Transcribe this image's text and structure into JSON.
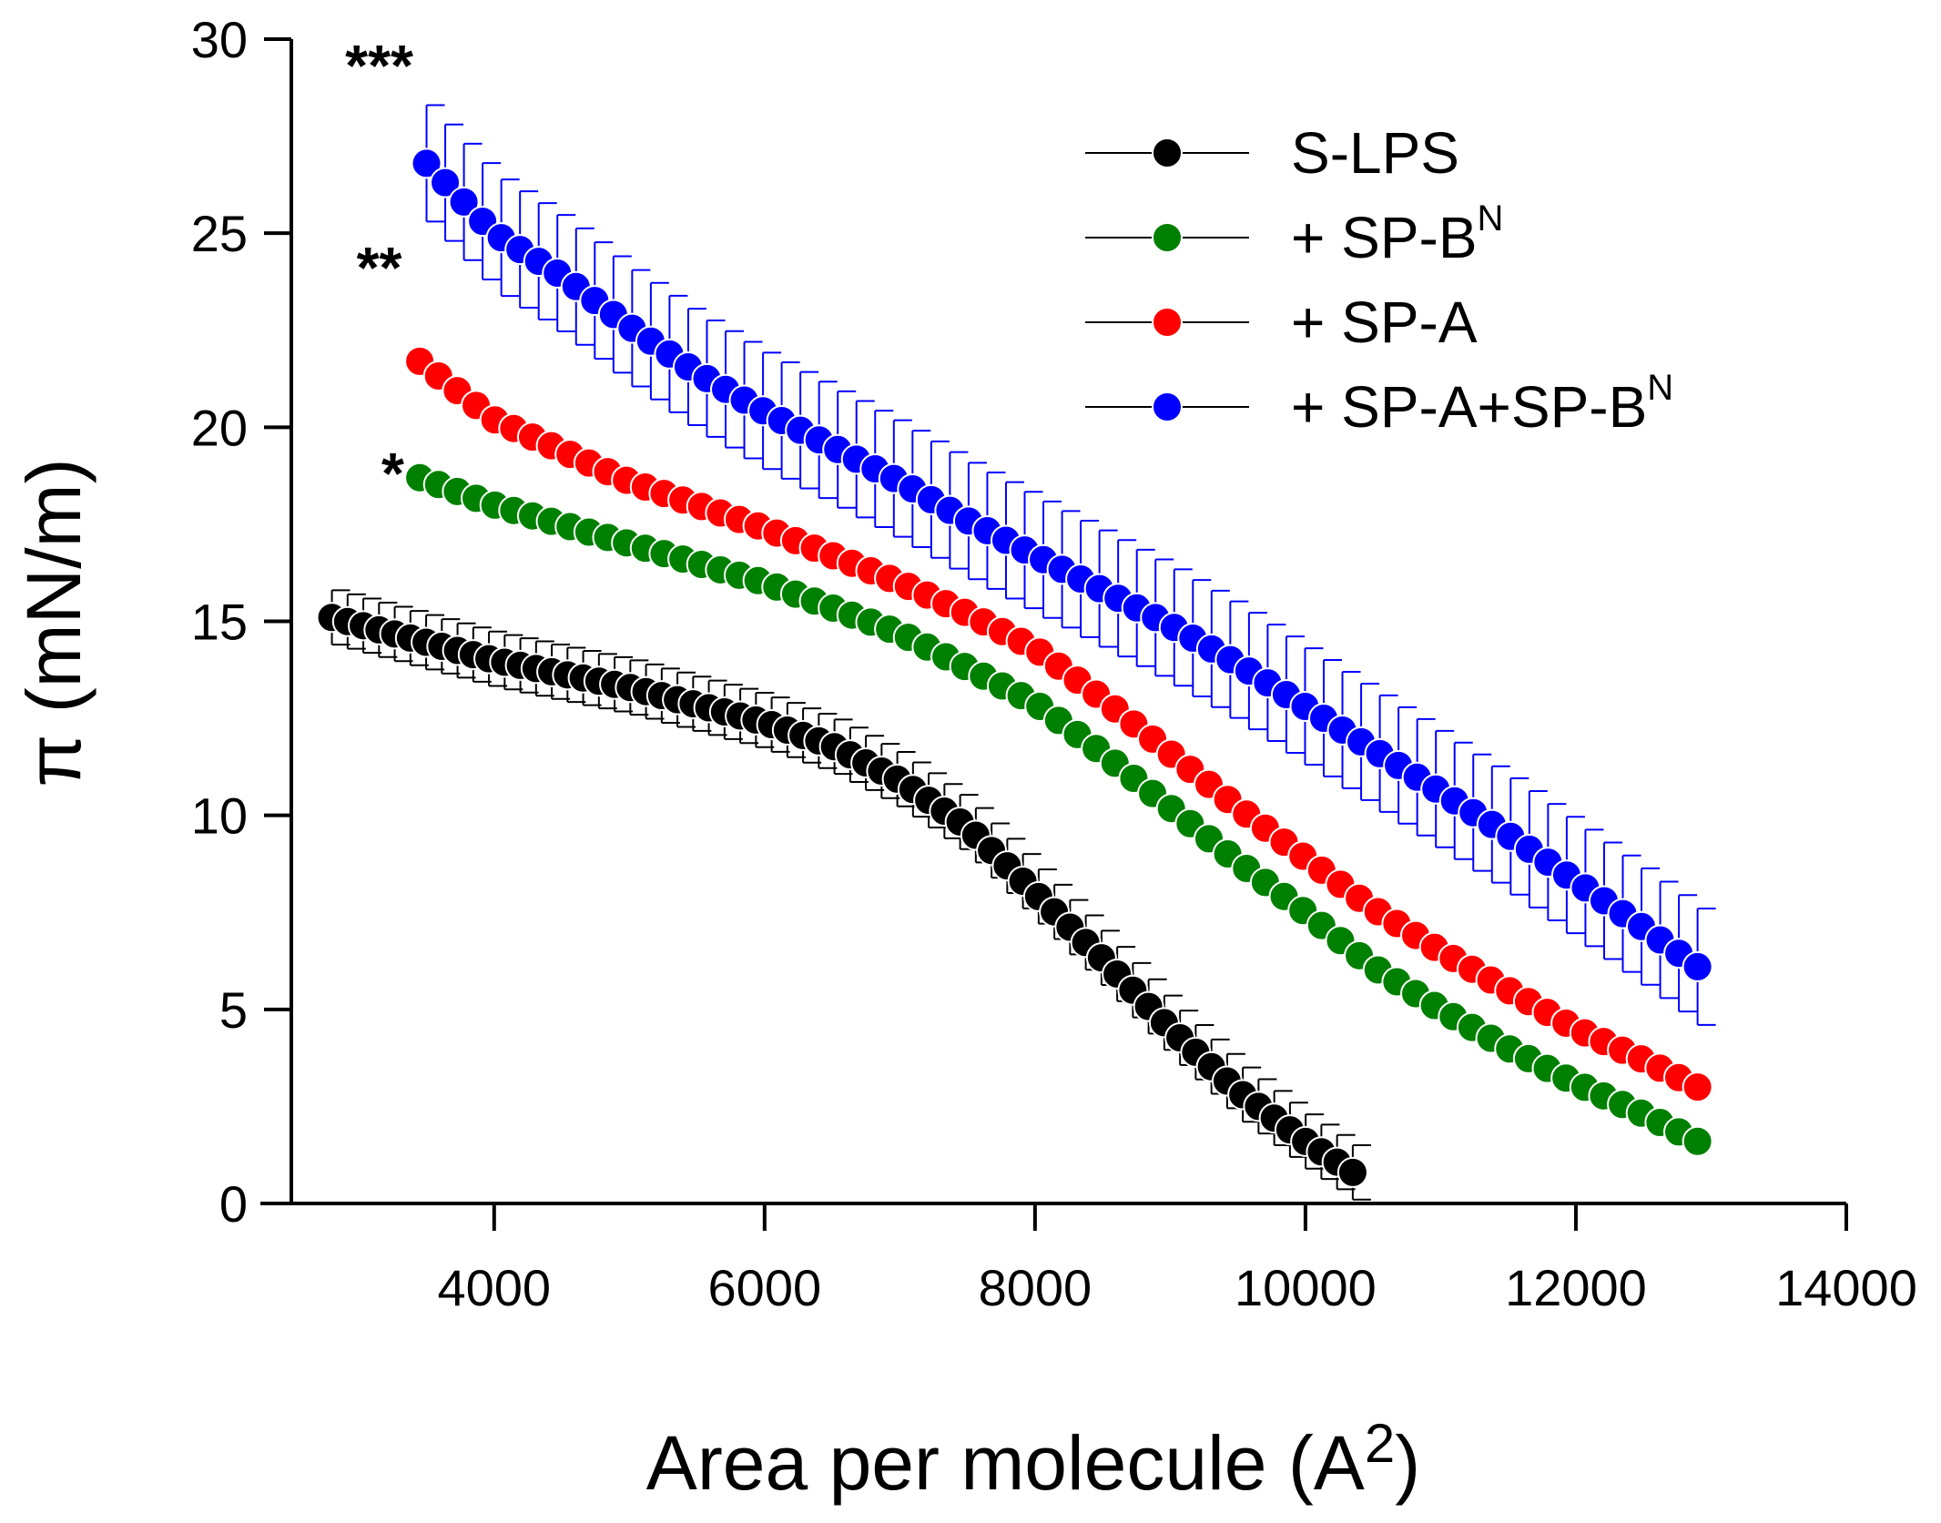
{
  "chart_data": {
    "type": "scatter",
    "title": "",
    "xlabel": "Area per molecule (A",
    "xlabel_sup": "2",
    "xlabel_close": ")",
    "ylabel": "π (mN/m)",
    "xlim": [
      2500,
      14000
    ],
    "ylim": [
      0,
      30
    ],
    "xticks": [
      4000,
      6000,
      8000,
      10000,
      12000,
      14000
    ],
    "yticks": [
      0,
      5,
      10,
      15,
      20,
      25,
      30
    ],
    "x_tick_labels": [
      "4000",
      "6000",
      "8000",
      "10000",
      "12000",
      "14000"
    ],
    "y_tick_labels": [
      "0",
      "5",
      "10",
      "15",
      "20",
      "25",
      "30"
    ],
    "legend_position": "top-right",
    "series": [
      {
        "name": "S-LPS",
        "name_sup": "",
        "color": "#000000",
        "x_start": 2800,
        "x_end": 10350,
        "n_points": 66,
        "error": 0.7,
        "curve": [
          [
            2800,
            15.1
          ],
          [
            4000,
            14.0
          ],
          [
            5000,
            13.3
          ],
          [
            6000,
            12.4
          ],
          [
            6500,
            11.8
          ],
          [
            7000,
            10.9
          ],
          [
            7500,
            9.7
          ],
          [
            8000,
            8.0
          ],
          [
            8500,
            6.3
          ],
          [
            9000,
            4.5
          ],
          [
            9500,
            2.9
          ],
          [
            10000,
            1.6
          ],
          [
            10350,
            0.8
          ]
        ]
      },
      {
        "name": "+ SP-B",
        "name_sup": "N",
        "color": "#008000",
        "x_start": 3450,
        "x_end": 12900,
        "n_points": 69,
        "error": 0,
        "curve": [
          [
            3450,
            18.7
          ],
          [
            4000,
            18.0
          ],
          [
            5000,
            17.0
          ],
          [
            6000,
            16.0
          ],
          [
            7000,
            14.7
          ],
          [
            7500,
            13.8
          ],
          [
            8000,
            12.9
          ],
          [
            8500,
            11.6
          ],
          [
            9000,
            10.2
          ],
          [
            9500,
            8.8
          ],
          [
            10000,
            7.5
          ],
          [
            10500,
            6.1
          ],
          [
            11000,
            5.0
          ],
          [
            11500,
            4.0
          ],
          [
            12000,
            3.1
          ],
          [
            12500,
            2.3
          ],
          [
            12900,
            1.6
          ]
        ]
      },
      {
        "name": "+ SP-A",
        "name_sup": "",
        "color": "#ff0000",
        "x_start": 3450,
        "x_end": 12900,
        "n_points": 69,
        "error": 0,
        "curve": [
          [
            3450,
            21.7
          ],
          [
            4000,
            20.2
          ],
          [
            5000,
            18.6
          ],
          [
            6000,
            17.4
          ],
          [
            7000,
            16.0
          ],
          [
            7500,
            15.2
          ],
          [
            8000,
            14.3
          ],
          [
            8500,
            13.0
          ],
          [
            9000,
            11.6
          ],
          [
            9500,
            10.2
          ],
          [
            10000,
            8.9
          ],
          [
            10500,
            7.6
          ],
          [
            11000,
            6.5
          ],
          [
            11500,
            5.5
          ],
          [
            12000,
            4.5
          ],
          [
            12500,
            3.7
          ],
          [
            12900,
            3.0
          ]
        ]
      },
      {
        "name": "+ SP-A+SP-B",
        "name_sup": "N",
        "color": "#0000ff",
        "x_start": 3500,
        "x_end": 12900,
        "n_points": 69,
        "error": 1.5,
        "curve": [
          [
            3500,
            26.8
          ],
          [
            4000,
            25.0
          ],
          [
            4500,
            23.9
          ],
          [
            5000,
            22.6
          ],
          [
            5500,
            21.4
          ],
          [
            6000,
            20.4
          ],
          [
            6500,
            19.5
          ],
          [
            7000,
            18.6
          ],
          [
            7500,
            17.6
          ],
          [
            8000,
            16.7
          ],
          [
            8500,
            15.8
          ],
          [
            9000,
            14.9
          ],
          [
            9500,
            13.9
          ],
          [
            10000,
            12.8
          ],
          [
            10500,
            11.7
          ],
          [
            11000,
            10.6
          ],
          [
            11500,
            9.5
          ],
          [
            12000,
            8.3
          ],
          [
            12500,
            7.1
          ],
          [
            12900,
            6.1
          ]
        ]
      }
    ],
    "annotations": [
      {
        "text": "***",
        "x": 3150,
        "y": 28.8
      },
      {
        "text": "**",
        "x": 3150,
        "y": 23.6
      },
      {
        "text": "*",
        "x": 3250,
        "y": 18.3
      }
    ]
  }
}
